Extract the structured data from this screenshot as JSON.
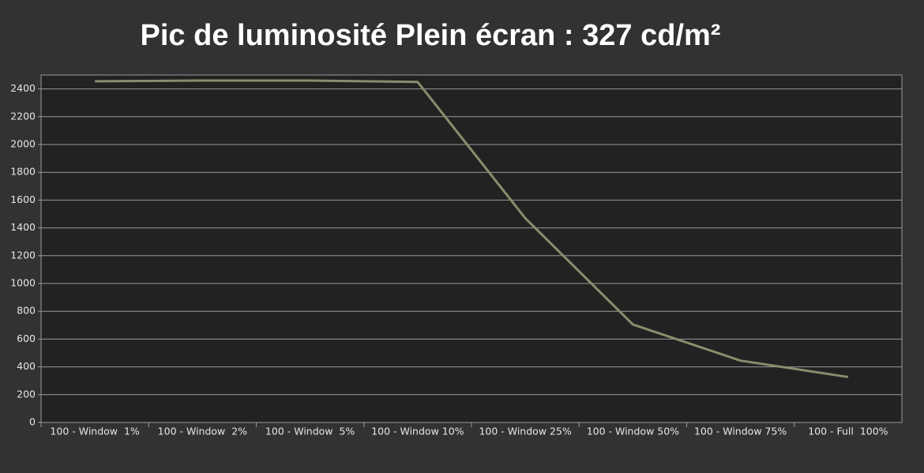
{
  "chart_data": {
    "type": "line",
    "title": "Pic de luminosité Plein écran : 327 cd/m²",
    "categories": [
      "100 - Window  1%",
      "100 - Window  2%",
      "100 - Window  5%",
      "100 - Window 10%",
      "100 - Window 25%",
      "100 - Window 50%",
      "100 - Window 75%",
      "100 - Full  100%"
    ],
    "values": [
      2455,
      2460,
      2460,
      2450,
      1470,
      705,
      445,
      327
    ],
    "color": "#8b8c6c",
    "ylim": [
      0,
      2500
    ],
    "yticks": [
      0,
      200,
      400,
      600,
      800,
      1000,
      1200,
      1400,
      1600,
      1800,
      2000,
      2200,
      2400
    ],
    "grid": true
  }
}
